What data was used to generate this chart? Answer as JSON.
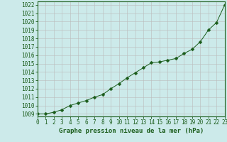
{
  "x": [
    0,
    1,
    2,
    3,
    4,
    5,
    6,
    7,
    8,
    9,
    10,
    11,
    12,
    13,
    14,
    15,
    16,
    17,
    18,
    19,
    20,
    21,
    22,
    23
  ],
  "y": [
    1009.0,
    1009.0,
    1009.2,
    1009.5,
    1010.0,
    1010.3,
    1010.6,
    1011.0,
    1011.3,
    1012.0,
    1012.6,
    1013.3,
    1013.9,
    1014.5,
    1015.1,
    1015.2,
    1015.4,
    1015.6,
    1016.2,
    1016.7,
    1017.6,
    1019.0,
    1019.9,
    1022.0
  ],
  "xlim": [
    0,
    23
  ],
  "ylim": [
    1008.7,
    1022.4
  ],
  "yticks": [
    1009,
    1010,
    1011,
    1012,
    1013,
    1014,
    1015,
    1016,
    1017,
    1018,
    1019,
    1020,
    1021,
    1022
  ],
  "xticks": [
    0,
    1,
    2,
    3,
    4,
    5,
    6,
    7,
    8,
    9,
    10,
    11,
    12,
    13,
    14,
    15,
    16,
    17,
    18,
    19,
    20,
    21,
    22,
    23
  ],
  "line_color": "#1a5c1a",
  "marker": "D",
  "marker_size": 2.5,
  "bg_color": "#cceaea",
  "grid_color": "#bbbbbb",
  "xlabel": "Graphe pression niveau de la mer (hPa)",
  "axis_fontsize": 5.5,
  "label_fontsize": 6.5
}
